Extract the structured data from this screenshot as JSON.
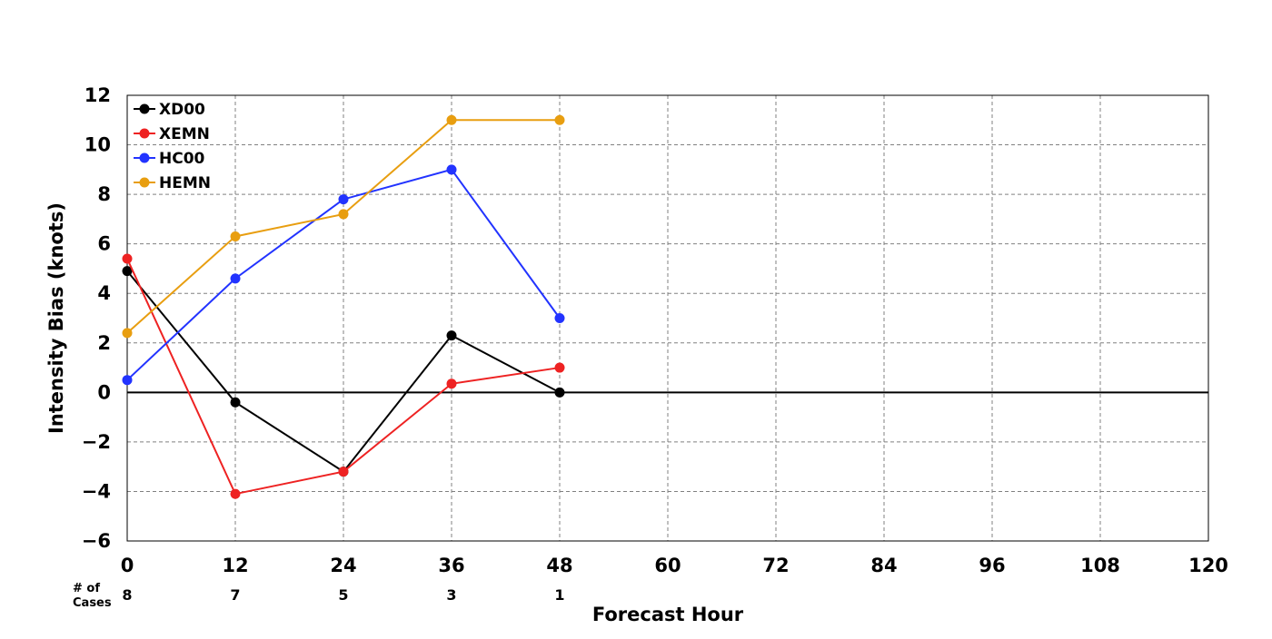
{
  "chart_data": {
    "type": "line",
    "xlabel": "Forecast Hour",
    "ylabel": "Intensity Bias (knots)",
    "xlim": [
      0,
      120
    ],
    "ylim": [
      -6,
      12
    ],
    "x_ticks": [
      0,
      12,
      24,
      36,
      48,
      60,
      72,
      84,
      96,
      108,
      120
    ],
    "y_ticks": [
      -6,
      -4,
      -2,
      0,
      2,
      4,
      6,
      8,
      10,
      12
    ],
    "x_tick_labels": [
      "0",
      "12",
      "24",
      "36",
      "48",
      "60",
      "72",
      "84",
      "96",
      "108",
      "120"
    ],
    "y_tick_labels": [
      "−6",
      "−4",
      "−2",
      "0",
      "2",
      "4",
      "6",
      "8",
      "10",
      "12"
    ],
    "grid": true,
    "zero_line": true,
    "legend_position": "top-left",
    "x": [
      0,
      12,
      24,
      36,
      48
    ],
    "series": [
      {
        "name": "XD00",
        "color": "#000000",
        "values": [
          4.9,
          -0.4,
          -3.2,
          2.3,
          0.0
        ]
      },
      {
        "name": "XEMN",
        "color": "#ee2222",
        "values": [
          5.4,
          -4.1,
          -3.2,
          0.35,
          1.0
        ]
      },
      {
        "name": "HC00",
        "color": "#2233ff",
        "values": [
          0.5,
          4.6,
          7.8,
          9.0,
          3.0
        ]
      },
      {
        "name": "HEMN",
        "color": "#e89e10",
        "values": [
          2.4,
          6.3,
          7.2,
          11.0,
          11.0
        ]
      }
    ],
    "cases": {
      "label_line1": "# of",
      "label_line2": "Cases",
      "values": [
        "8",
        "7",
        "5",
        "3",
        "1"
      ]
    }
  }
}
